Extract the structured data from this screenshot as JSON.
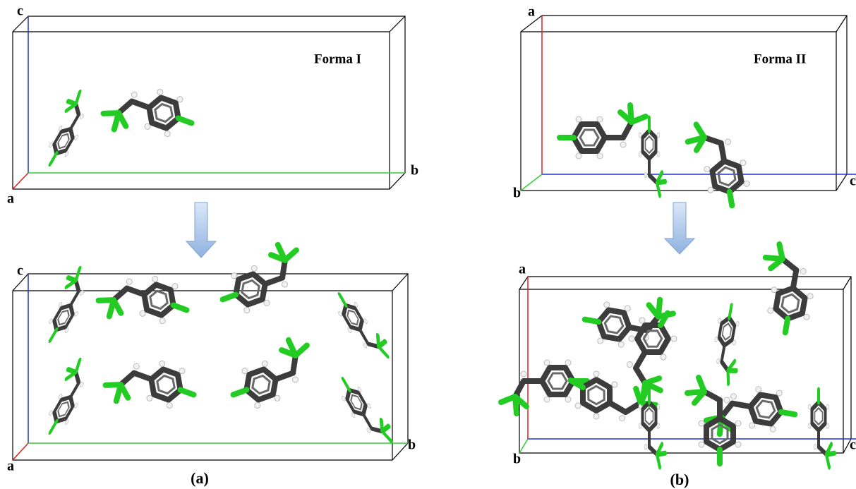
{
  "panels": [
    {
      "caption": "(a)",
      "top": {
        "title": "Forma I",
        "axes": [
          "c",
          "a",
          "b"
        ]
      },
      "bottom": {
        "axes": [
          "c",
          "a",
          "b"
        ]
      }
    },
    {
      "caption": "(b)",
      "top": {
        "title": "Forma II",
        "axes": [
          "a",
          "b",
          "c"
        ]
      },
      "bottom": {
        "axes": [
          "a",
          "b",
          "c"
        ]
      }
    }
  ]
}
